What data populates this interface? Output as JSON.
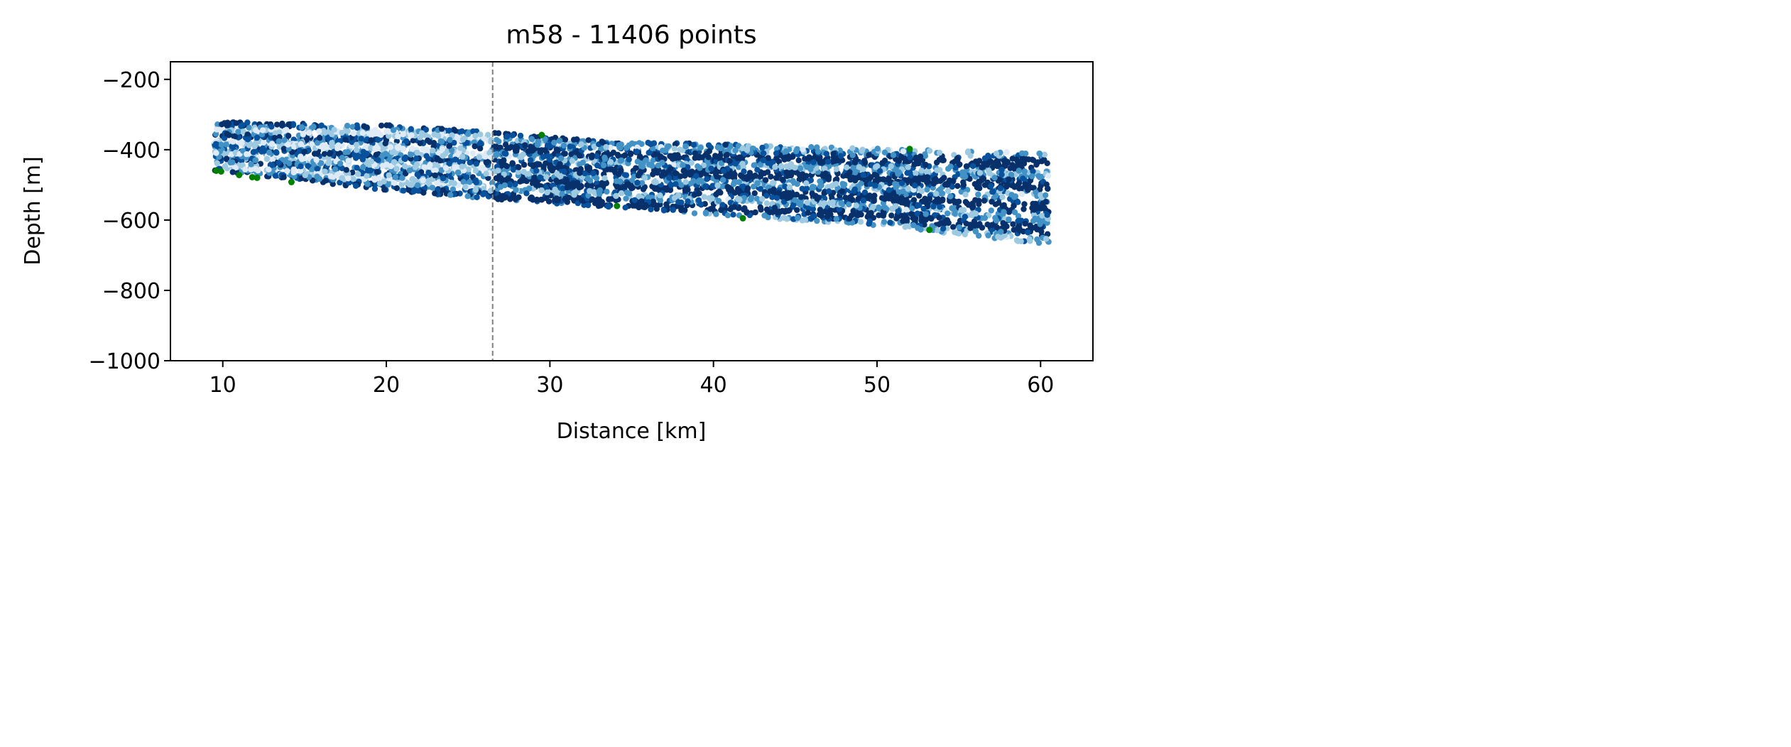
{
  "chart_data": {
    "type": "scatter",
    "title": "m58 - 11406 points",
    "xlabel": "Distance [km]",
    "ylabel": "Depth [m]",
    "xlim": [
      6.8,
      63.2
    ],
    "ylim": [
      -1000,
      -150
    ],
    "xticks": [
      10,
      20,
      30,
      40,
      50,
      60
    ],
    "xtick_labels": [
      "10",
      "20",
      "30",
      "40",
      "50",
      "60"
    ],
    "yticks": [
      -1000,
      -800,
      -600,
      -400,
      -200
    ],
    "ytick_labels": [
      "−1000",
      "−800",
      "−600",
      "−400",
      "−200"
    ],
    "grid": false,
    "legend": "none",
    "vline": {
      "x": 26.5,
      "style": "dashed",
      "color": "#808080"
    },
    "series": [
      {
        "marker": "circle",
        "colormap": [
          "#deebf7",
          "#9ecae1",
          "#4292c6",
          "#08519c",
          "#08306b"
        ],
        "x_range": [
          9.5,
          60.5
        ],
        "top_depth": [
          {
            "x": 9.5,
            "depth": -320
          },
          {
            "x": 20,
            "depth": -330
          },
          {
            "x": 26.5,
            "depth": -350
          },
          {
            "x": 33,
            "depth": -375
          },
          {
            "x": 45,
            "depth": -390
          },
          {
            "x": 60.5,
            "depth": -410
          }
        ],
        "bottom_depth": [
          {
            "x": 9.5,
            "depth": -460
          },
          {
            "x": 20,
            "depth": -515
          },
          {
            "x": 26.5,
            "depth": -540
          },
          {
            "x": 40,
            "depth": -585
          },
          {
            "x": 50,
            "depth": -615
          },
          {
            "x": 60.5,
            "depth": -670
          }
        ]
      },
      {
        "marker": "circle",
        "color": "#007f00",
        "points": [
          {
            "x": 9.6,
            "y": -460
          },
          {
            "x": 9.9,
            "y": -462
          },
          {
            "x": 11.0,
            "y": -472
          },
          {
            "x": 11.8,
            "y": -478
          },
          {
            "x": 12.1,
            "y": -480
          },
          {
            "x": 14.2,
            "y": -492
          },
          {
            "x": 29.5,
            "y": -358
          },
          {
            "x": 34.1,
            "y": -560
          },
          {
            "x": 41.8,
            "y": -595
          },
          {
            "x": 52.0,
            "y": -398
          },
          {
            "x": 53.2,
            "y": -628
          }
        ]
      }
    ]
  }
}
